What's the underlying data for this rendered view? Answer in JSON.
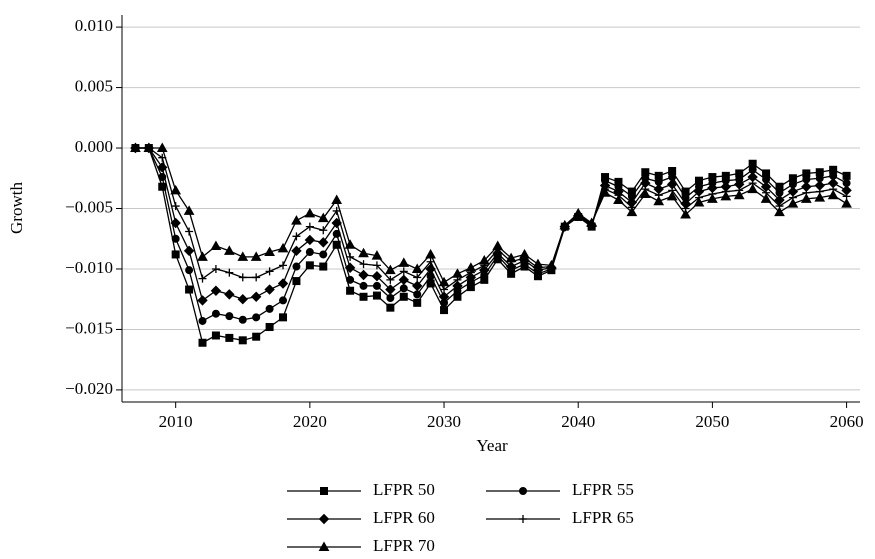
{
  "chart_data": {
    "type": "line",
    "y_label": "Growth",
    "x_label": "Year",
    "x": [
      2007,
      2008,
      2009,
      2010,
      2011,
      2012,
      2013,
      2014,
      2015,
      2016,
      2017,
      2018,
      2019,
      2020,
      2021,
      2022,
      2023,
      2024,
      2025,
      2026,
      2027,
      2028,
      2029,
      2030,
      2031,
      2032,
      2033,
      2034,
      2035,
      2036,
      2037,
      2038,
      2039,
      2040,
      2041,
      2042,
      2043,
      2044,
      2045,
      2046,
      2047,
      2048,
      2049,
      2050,
      2051,
      2052,
      2053,
      2054,
      2055,
      2056,
      2057,
      2058,
      2059,
      2060
    ],
    "xlim": [
      2006,
      2061
    ],
    "xticks": [
      2010,
      2020,
      2030,
      2040,
      2050,
      2060
    ],
    "ylim": [
      -0.021,
      0.011
    ],
    "yticks": [
      {
        "value": -0.02,
        "label": "−0.020"
      },
      {
        "value": -0.015,
        "label": "−0.015"
      },
      {
        "value": -0.01,
        "label": "−0.010"
      },
      {
        "value": -0.005,
        "label": "−0.005"
      },
      {
        "value": 0,
        "label": "0.000"
      },
      {
        "value": 0.005,
        "label": "0.005"
      },
      {
        "value": 0.01,
        "label": "0.010"
      }
    ],
    "grid": true,
    "series": [
      {
        "name": "LFPR 50",
        "color": "#000000",
        "marker": "square",
        "values": [
          0,
          0,
          -0.0032,
          -0.0088,
          -0.0117,
          -0.0161,
          -0.0155,
          -0.0157,
          -0.0159,
          -0.0156,
          -0.0148,
          -0.014,
          -0.011,
          -0.0097,
          -0.0098,
          -0.008,
          -0.0118,
          -0.0123,
          -0.0122,
          -0.0132,
          -0.0123,
          -0.0128,
          -0.0112,
          -0.0134,
          -0.0123,
          -0.0115,
          -0.0109,
          -0.0092,
          -0.0104,
          -0.0098,
          -0.0106,
          -0.0101,
          -0.0065,
          -0.0057,
          -0.0065,
          -0.0024,
          -0.0028,
          -0.0036,
          -0.002,
          -0.0023,
          -0.0019,
          -0.0036,
          -0.0027,
          -0.0024,
          -0.0023,
          -0.0021,
          -0.0013,
          -0.0021,
          -0.0032,
          -0.0025,
          -0.0021,
          -0.002,
          -0.0018,
          -0.0023
        ]
      },
      {
        "name": "LFPR 55",
        "color": "#000000",
        "marker": "circle",
        "values": [
          0,
          0,
          -0.0024,
          -0.0075,
          -0.0101,
          -0.0143,
          -0.0137,
          -0.0139,
          -0.0142,
          -0.014,
          -0.0133,
          -0.0126,
          -0.0098,
          -0.0086,
          -0.0088,
          -0.0071,
          -0.0109,
          -0.0114,
          -0.0114,
          -0.0124,
          -0.0116,
          -0.0121,
          -0.0106,
          -0.0128,
          -0.0118,
          -0.0111,
          -0.0105,
          -0.0089,
          -0.0101,
          -0.0096,
          -0.0104,
          -0.01,
          -0.0065,
          -0.0056,
          -0.0064,
          -0.0027,
          -0.0032,
          -0.004,
          -0.0025,
          -0.0028,
          -0.0024,
          -0.0041,
          -0.0032,
          -0.0029,
          -0.0027,
          -0.0026,
          -0.0018,
          -0.0026,
          -0.0037,
          -0.003,
          -0.0026,
          -0.0025,
          -0.0023,
          -0.0029
        ]
      },
      {
        "name": "LFPR 60",
        "color": "#000000",
        "marker": "diamond",
        "values": [
          0,
          0,
          -0.0016,
          -0.0062,
          -0.0085,
          -0.0126,
          -0.0118,
          -0.0121,
          -0.0125,
          -0.0123,
          -0.0117,
          -0.0112,
          -0.0085,
          -0.0076,
          -0.0078,
          -0.0062,
          -0.0099,
          -0.0105,
          -0.0106,
          -0.0117,
          -0.0109,
          -0.0114,
          -0.01,
          -0.0123,
          -0.0114,
          -0.0107,
          -0.0101,
          -0.0087,
          -0.0098,
          -0.0093,
          -0.0101,
          -0.0099,
          -0.0065,
          -0.0056,
          -0.0064,
          -0.0031,
          -0.0036,
          -0.0045,
          -0.0029,
          -0.0034,
          -0.003,
          -0.0046,
          -0.0036,
          -0.0033,
          -0.0032,
          -0.003,
          -0.0024,
          -0.0032,
          -0.0043,
          -0.0036,
          -0.0032,
          -0.0031,
          -0.0029,
          -0.0035
        ]
      },
      {
        "name": "LFPR 65",
        "color": "#000000",
        "marker": "plus",
        "values": [
          0,
          0,
          -0.0008,
          -0.0048,
          -0.0069,
          -0.0108,
          -0.01,
          -0.0103,
          -0.0107,
          -0.0107,
          -0.0102,
          -0.0097,
          -0.0073,
          -0.0065,
          -0.0068,
          -0.0052,
          -0.009,
          -0.0096,
          -0.0097,
          -0.0109,
          -0.0102,
          -0.0107,
          -0.0094,
          -0.0117,
          -0.0109,
          -0.0103,
          -0.0097,
          -0.0084,
          -0.0094,
          -0.0091,
          -0.0099,
          -0.0098,
          -0.0064,
          -0.0055,
          -0.0063,
          -0.0034,
          -0.0039,
          -0.0049,
          -0.0034,
          -0.0039,
          -0.0035,
          -0.005,
          -0.0041,
          -0.0038,
          -0.0036,
          -0.0035,
          -0.0029,
          -0.0037,
          -0.0048,
          -0.0041,
          -0.0037,
          -0.0036,
          -0.0034,
          -0.004
        ]
      },
      {
        "name": "LFPR 70",
        "color": "#000000",
        "marker": "triangle",
        "values": [
          0,
          0,
          0,
          -0.0035,
          -0.0052,
          -0.009,
          -0.0081,
          -0.0085,
          -0.009,
          -0.009,
          -0.0086,
          -0.0083,
          -0.006,
          -0.0054,
          -0.0058,
          -0.0043,
          -0.008,
          -0.0087,
          -0.0089,
          -0.0101,
          -0.0095,
          -0.01,
          -0.0088,
          -0.0111,
          -0.0104,
          -0.0099,
          -0.0093,
          -0.0081,
          -0.0091,
          -0.0088,
          -0.0096,
          -0.0097,
          -0.0064,
          -0.0054,
          -0.0062,
          -0.0037,
          -0.0043,
          -0.0053,
          -0.0038,
          -0.0044,
          -0.004,
          -0.0055,
          -0.0045,
          -0.0042,
          -0.004,
          -0.0039,
          -0.0034,
          -0.0042,
          -0.0053,
          -0.0046,
          -0.0042,
          -0.0041,
          -0.0039,
          -0.0046
        ]
      }
    ]
  }
}
